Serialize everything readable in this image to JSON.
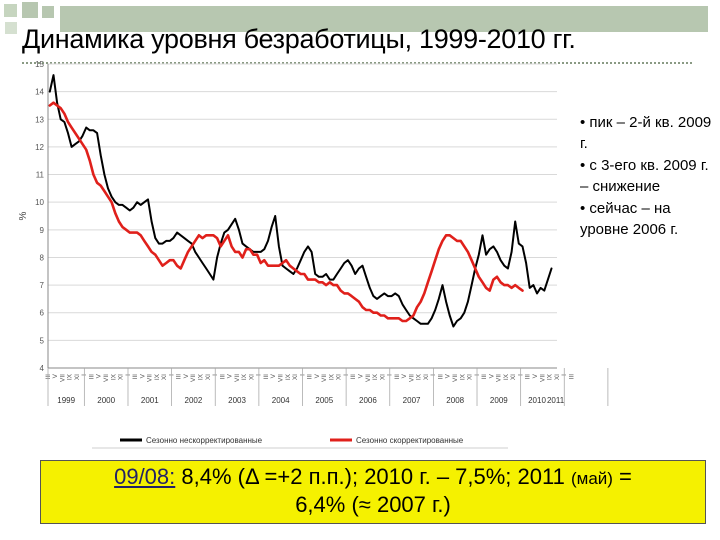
{
  "slide": {
    "title": "Динамика уровня безработицы, 1999-2010 гг.",
    "bullets": [
      "• пик – 2-й кв. 2009 г.",
      "• с 3-его кв. 2009 г. – снижение",
      "• сейчас – на уровне 2006 г."
    ],
    "summary": {
      "lead": "09/08:",
      "part1": " 8,4% (Δ =+2 п.п.); 2010 г. – 7,5%; 2011 ",
      "note": "(май)",
      "part2": " =",
      "line2": "6,4% (≈ 2007 г.)"
    }
  },
  "colors": {
    "accent_bar": "#b7c7b0",
    "series_raw": "#000000",
    "series_sa": "#e0201b",
    "highlight": "#f5f100"
  },
  "chart_data": {
    "type": "line",
    "ylabel": "%",
    "ylim": [
      4,
      15
    ],
    "yticks": [
      4,
      5,
      6,
      7,
      8,
      9,
      10,
      11,
      12,
      13,
      14,
      15
    ],
    "month_ticks": [
      "III",
      "V",
      "VII",
      "IX",
      "XI",
      "I",
      "III",
      "V",
      "VII",
      "IX",
      "XI",
      "I",
      "III",
      "V",
      "VII",
      "IX",
      "XI",
      "I",
      "III",
      "V",
      "VII",
      "IX",
      "XI",
      "I",
      "III",
      "V",
      "VII",
      "IX",
      "XI",
      "I",
      "III",
      "V",
      "VII",
      "IX",
      "XI",
      "I",
      "III",
      "V",
      "VII",
      "IX",
      "XI",
      "I",
      "III",
      "V",
      "VII",
      "IX",
      "XI",
      "I",
      "III",
      "V",
      "VII",
      "IX",
      "XI",
      "I",
      "III",
      "V",
      "VII",
      "IX",
      "XI",
      "I",
      "III",
      "V",
      "VII",
      "IX",
      "XI",
      "I",
      "III",
      "V",
      "VII",
      "IX",
      "XI",
      "I",
      "III"
    ],
    "year_labels": [
      "1999",
      "2000",
      "2001",
      "2002",
      "2003",
      "2004",
      "2005",
      "2006",
      "2007",
      "2008",
      "2009",
      "2010",
      "2011"
    ],
    "x_start_month_index": 2,
    "legend": {
      "position": "bottom"
    },
    "grid": true,
    "series": [
      {
        "name": "Сезонно нескорректированные",
        "color": "#000000",
        "values": [
          14.0,
          14.6,
          13.6,
          13.0,
          12.9,
          12.5,
          12.0,
          12.1,
          12.2,
          12.4,
          12.7,
          12.6,
          12.6,
          12.5,
          11.7,
          11.0,
          10.5,
          10.2,
          10.0,
          9.9,
          9.9,
          9.8,
          9.7,
          9.8,
          10.0,
          9.9,
          10.0,
          10.1,
          9.3,
          8.7,
          8.5,
          8.5,
          8.6,
          8.6,
          8.7,
          8.9,
          8.8,
          8.7,
          8.6,
          8.5,
          8.2,
          8.0,
          7.8,
          7.6,
          7.4,
          7.2,
          8.0,
          8.5,
          8.9,
          9.0,
          9.2,
          9.4,
          9.0,
          8.5,
          8.4,
          8.3,
          8.2,
          8.2,
          8.2,
          8.3,
          8.6,
          9.1,
          9.5,
          8.4,
          7.7,
          7.6,
          7.5,
          7.4,
          7.6,
          7.9,
          8.2,
          8.4,
          8.2,
          7.4,
          7.3,
          7.3,
          7.4,
          7.2,
          7.2,
          7.4,
          7.6,
          7.8,
          7.9,
          7.7,
          7.4,
          7.6,
          7.7,
          7.3,
          6.9,
          6.6,
          6.5,
          6.6,
          6.7,
          6.6,
          6.6,
          6.7,
          6.6,
          6.3,
          6.1,
          5.9,
          5.8,
          5.7,
          5.6,
          5.6,
          5.6,
          5.8,
          6.1,
          6.5,
          7.0,
          6.4,
          5.9,
          5.5,
          5.7,
          5.8,
          6.0,
          6.4,
          7.0,
          7.6,
          8.1,
          8.8,
          8.1,
          8.3,
          8.4,
          8.2,
          7.9,
          7.7,
          7.6,
          8.2,
          9.3,
          8.5,
          8.4,
          7.8,
          6.9,
          7.0,
          6.7,
          6.9,
          6.8,
          7.2,
          7.6
        ]
      },
      {
        "name": "Сезонно скорректированные",
        "color": "#e0201b",
        "values": [
          13.5,
          13.6,
          13.5,
          13.4,
          13.2,
          12.9,
          12.7,
          12.5,
          12.3,
          12.1,
          11.9,
          11.5,
          11.0,
          10.7,
          10.6,
          10.4,
          10.2,
          10.0,
          9.6,
          9.3,
          9.1,
          9.0,
          8.9,
          8.9,
          8.9,
          8.8,
          8.6,
          8.4,
          8.2,
          8.1,
          7.9,
          7.7,
          7.8,
          7.9,
          7.9,
          7.7,
          7.6,
          7.9,
          8.2,
          8.4,
          8.6,
          8.8,
          8.7,
          8.8,
          8.8,
          8.8,
          8.7,
          8.4,
          8.6,
          8.8,
          8.4,
          8.2,
          8.2,
          8.0,
          8.3,
          8.3,
          8.1,
          8.1,
          7.8,
          7.9,
          7.7,
          7.7,
          7.7,
          7.7,
          7.8,
          7.9,
          7.7,
          7.6,
          7.5,
          7.4,
          7.4,
          7.2,
          7.2,
          7.2,
          7.1,
          7.1,
          7.0,
          7.1,
          7.0,
          7.0,
          6.8,
          6.7,
          6.7,
          6.6,
          6.5,
          6.4,
          6.2,
          6.1,
          6.1,
          6.0,
          6.0,
          5.9,
          5.9,
          5.8,
          5.8,
          5.8,
          5.8,
          5.7,
          5.7,
          5.8,
          5.9,
          6.2,
          6.4,
          6.7,
          7.1,
          7.5,
          7.9,
          8.3,
          8.6,
          8.8,
          8.8,
          8.7,
          8.6,
          8.6,
          8.4,
          8.2,
          7.9,
          7.6,
          7.3,
          7.1,
          6.9,
          6.8,
          7.2,
          7.3,
          7.1,
          7.0,
          7.0,
          6.9,
          7.0,
          6.9,
          6.8
        ]
      }
    ]
  }
}
